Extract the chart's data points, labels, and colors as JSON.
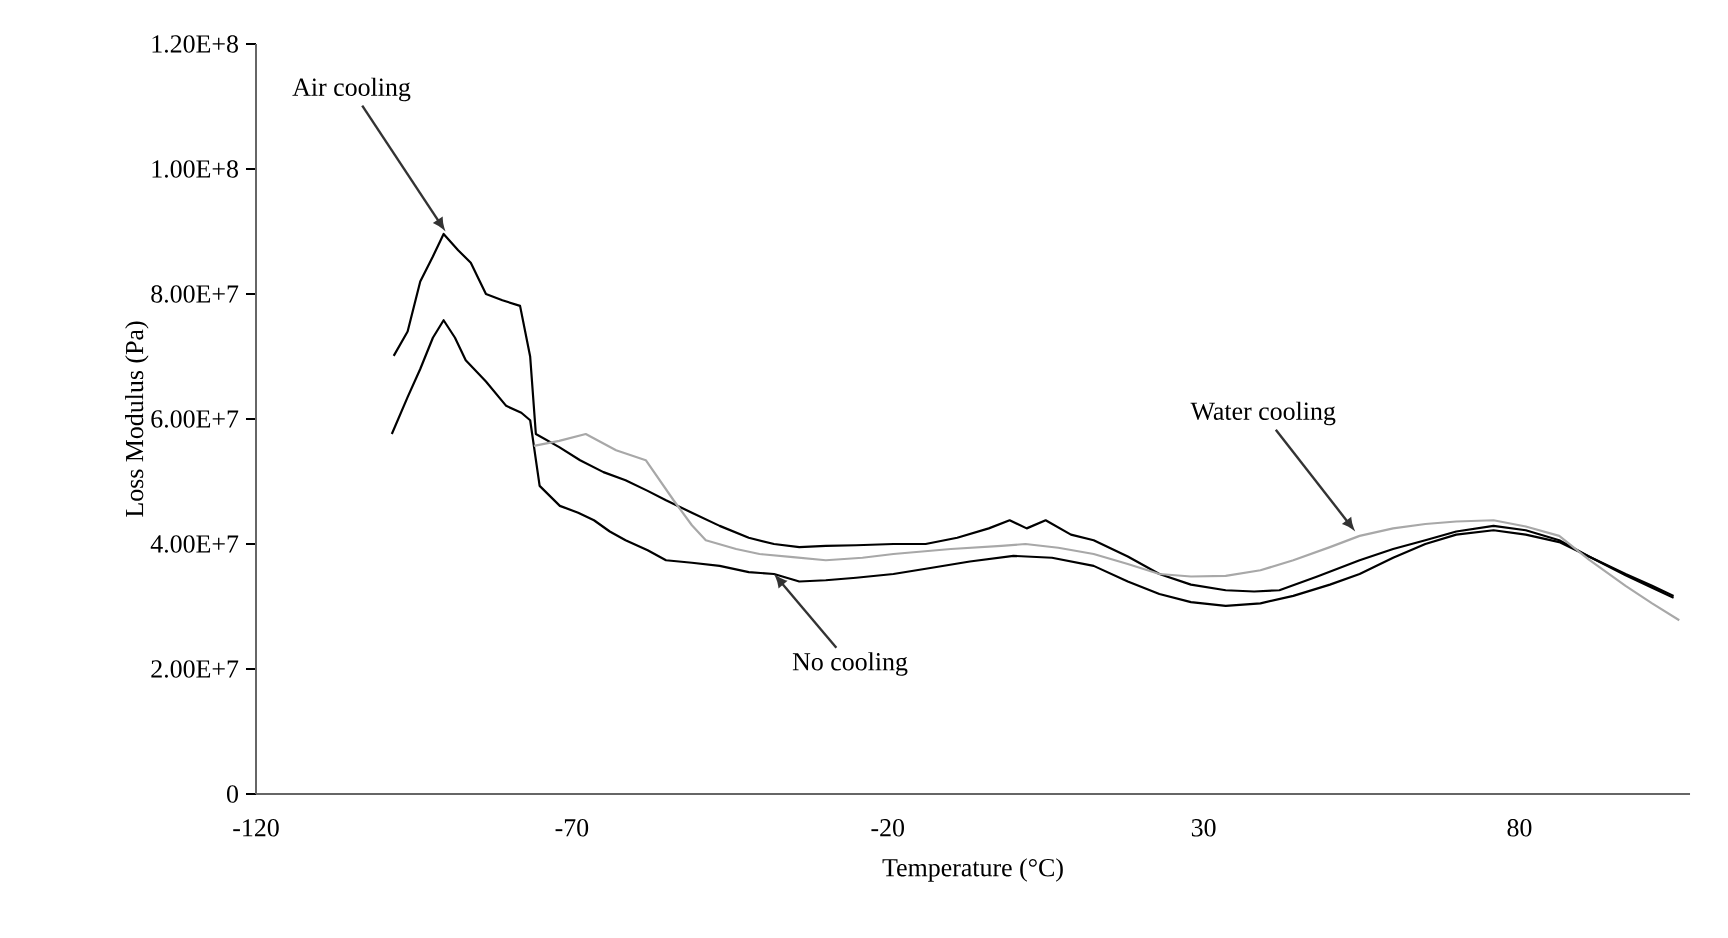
{
  "chart_data": {
    "type": "line",
    "xlabel": "Temperature (°C)",
    "ylabel": "Loss Modulus (Pa)",
    "xlim": [
      -120,
      107
    ],
    "ylim": [
      0,
      120000000
    ],
    "xticks": [
      -120,
      -70,
      -20,
      30,
      80
    ],
    "yticks": [
      0,
      {
        "value": 20000000,
        "label": "2.00E+7"
      },
      {
        "value": 40000000,
        "label": "4.00E+7"
      },
      {
        "value": 60000000,
        "label": "6.00E+7"
      },
      {
        "value": 80000000,
        "label": "8.00E+7"
      },
      {
        "value": 100000000,
        "label": "1.00E+8"
      },
      {
        "value": 120000000,
        "label": "1.20E+8"
      }
    ],
    "grid": false,
    "legend": false,
    "marker": "none",
    "line_style": "solid",
    "series": [
      {
        "color": "#000000",
        "x": [
          -98.2,
          -96,
          -94,
          -92,
          -90.3,
          -88,
          -86,
          -83.6,
          -81,
          -78.2,
          -76.6,
          -75.7,
          -72,
          -68.7,
          -65,
          -61.5,
          -58,
          -55.1,
          -51,
          -46.6,
          -42,
          -38,
          -34,
          -29.8,
          -25,
          -19.1,
          -14,
          -9,
          -4,
          -0.7,
          2,
          5,
          9,
          12.6,
          18,
          23,
          28,
          33.5,
          38,
          42,
          48,
          54.7,
          60,
          65.1,
          70,
          75.9,
          81,
          86.3,
          91,
          96.8,
          101,
          104.4
        ],
        "values": [
          70100000,
          74000000,
          82000000,
          86000000,
          89600000,
          87000000,
          85000000,
          80000000,
          79000000,
          78100000,
          70000000,
          57600000,
          55500000,
          53400000,
          51500000,
          50200000,
          48500000,
          47000000,
          45000000,
          42900000,
          41000000,
          40000000,
          39500000,
          39700000,
          39800000,
          40000000,
          40000000,
          41000000,
          42500000,
          43800000,
          42500000,
          43800000,
          41500000,
          40600000,
          38000000,
          35200000,
          33500000,
          32600000,
          32400000,
          32600000,
          34800000,
          37400000,
          39200000,
          40600000,
          42000000,
          42900000,
          42200000,
          40600000,
          38000000,
          35200000,
          33300000,
          31700000
        ]
      },
      {
        "color": "#000000",
        "x": [
          -98.5,
          -96,
          -94,
          -92,
          -90.3,
          -88.5,
          -86.8,
          -83.6,
          -80.4,
          -78,
          -76.6,
          -75.1,
          -71.9,
          -69,
          -66.5,
          -64,
          -61.5,
          -58,
          -55.1,
          -51,
          -46.6,
          -42,
          -38,
          -34,
          -29.8,
          -25,
          -19.1,
          -13,
          -7,
          -0.1,
          6,
          12.6,
          18,
          23,
          28,
          33.5,
          39,
          44.2,
          50,
          54.7,
          60,
          65.1,
          70,
          75.9,
          81,
          86.3,
          91,
          96.8,
          101,
          104.4
        ],
        "values": [
          57600000,
          63500000,
          68000000,
          73000000,
          75800000,
          73000000,
          69400000,
          66000000,
          62100000,
          61000000,
          59800000,
          49300000,
          46100000,
          45000000,
          43800000,
          42000000,
          40600000,
          39000000,
          37400000,
          37000000,
          36500000,
          35500000,
          35200000,
          34000000,
          34200000,
          34600000,
          35200000,
          36200000,
          37200000,
          38100000,
          37800000,
          36500000,
          34000000,
          32000000,
          30700000,
          30100000,
          30500000,
          31700000,
          33500000,
          35200000,
          37800000,
          40000000,
          41500000,
          42200000,
          41500000,
          40300000,
          38000000,
          35000000,
          33000000,
          31400000
        ]
      },
      {
        "color": "#a8a8a8",
        "x": [
          -76,
          -72,
          -67.8,
          -63,
          -58.3,
          -53.9,
          -51,
          -48.8,
          -44,
          -40.3,
          -35,
          -29.8,
          -24,
          -19.1,
          -10,
          -2,
          1.8,
          7,
          12.6,
          18,
          23,
          28,
          33.5,
          39,
          44.2,
          50,
          54.7,
          60,
          65.1,
          70,
          75.9,
          81,
          86.3,
          91,
          96.8,
          101,
          105.3
        ],
        "values": [
          55700000,
          56500000,
          57600000,
          55000000,
          53400000,
          47000000,
          43000000,
          40600000,
          39200000,
          38400000,
          37900000,
          37400000,
          37800000,
          38400000,
          39200000,
          39700000,
          40000000,
          39400000,
          38400000,
          36800000,
          35200000,
          34800000,
          34900000,
          35800000,
          37400000,
          39500000,
          41300000,
          42500000,
          43200000,
          43600000,
          43800000,
          42800000,
          41300000,
          37500000,
          33300000,
          30500000,
          27800000
        ]
      }
    ],
    "annotations": [
      {
        "text": "Air cooling",
        "x": -90,
        "y": 90000000
      },
      {
        "text": "Water cooling",
        "x": 54,
        "y": 42000000
      },
      {
        "text": "No cooling",
        "x": -38,
        "y": 35200000
      }
    ]
  }
}
